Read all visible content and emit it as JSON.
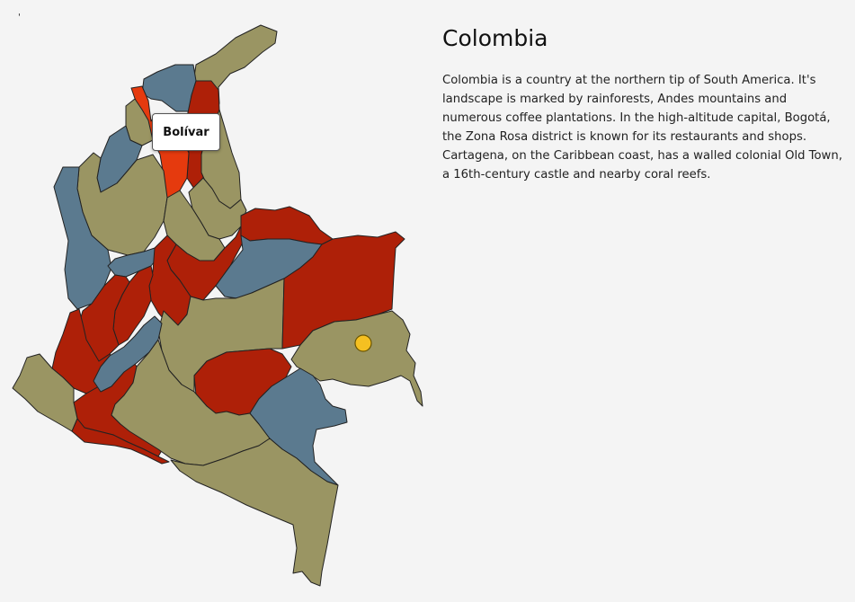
{
  "map": {
    "corner_mark": "'",
    "tooltip_label": "Bolívar",
    "colors": {
      "olive": "#9a9563",
      "slate": "#5b7a8f",
      "red": "#ae2008",
      "highlight": "#e53a0e",
      "marker": "#f5c021",
      "border": "#222222"
    },
    "regions": [
      {
        "name": "la-guajira",
        "color": "olive"
      },
      {
        "name": "atlantico",
        "color": "slate"
      },
      {
        "name": "magdalena",
        "color": "red"
      },
      {
        "name": "bolivar",
        "color": "highlight"
      },
      {
        "name": "cesar",
        "color": "olive"
      },
      {
        "name": "sucre",
        "color": "olive"
      },
      {
        "name": "cordoba",
        "color": "slate"
      },
      {
        "name": "norte-de-santander",
        "color": "olive"
      },
      {
        "name": "antioquia",
        "color": "olive"
      },
      {
        "name": "choco",
        "color": "slate"
      },
      {
        "name": "santander",
        "color": "olive"
      },
      {
        "name": "boyaca",
        "color": "red"
      },
      {
        "name": "arauca",
        "color": "red"
      },
      {
        "name": "casanare",
        "color": "slate"
      },
      {
        "name": "caldas",
        "color": "slate"
      },
      {
        "name": "cundinamarca",
        "color": "red"
      },
      {
        "name": "risaralda",
        "color": "red"
      },
      {
        "name": "tolima",
        "color": "red"
      },
      {
        "name": "valle",
        "color": "red"
      },
      {
        "name": "meta",
        "color": "olive"
      },
      {
        "name": "vichada",
        "color": "red"
      },
      {
        "name": "cauca",
        "color": "red"
      },
      {
        "name": "huila",
        "color": "slate"
      },
      {
        "name": "guaviare",
        "color": "red"
      },
      {
        "name": "guainia",
        "color": "olive"
      },
      {
        "name": "narino",
        "color": "olive"
      },
      {
        "name": "putumayo",
        "color": "red"
      },
      {
        "name": "caqueta",
        "color": "olive"
      },
      {
        "name": "vaupes",
        "color": "slate"
      },
      {
        "name": "amazonas",
        "color": "olive"
      }
    ]
  },
  "info": {
    "title": "Colombia",
    "description": "Colombia is a country at the northern tip of South America. It's landscape is marked by rainforests, Andes mountains and numerous coffee plantations. In the high-altitude capital, Bogotá, the Zona Rosa district is known for its restaurants and shops. Cartagena, on the Caribbean coast, has a walled colonial Old Town, a 16th-century castle and nearby coral reefs."
  }
}
